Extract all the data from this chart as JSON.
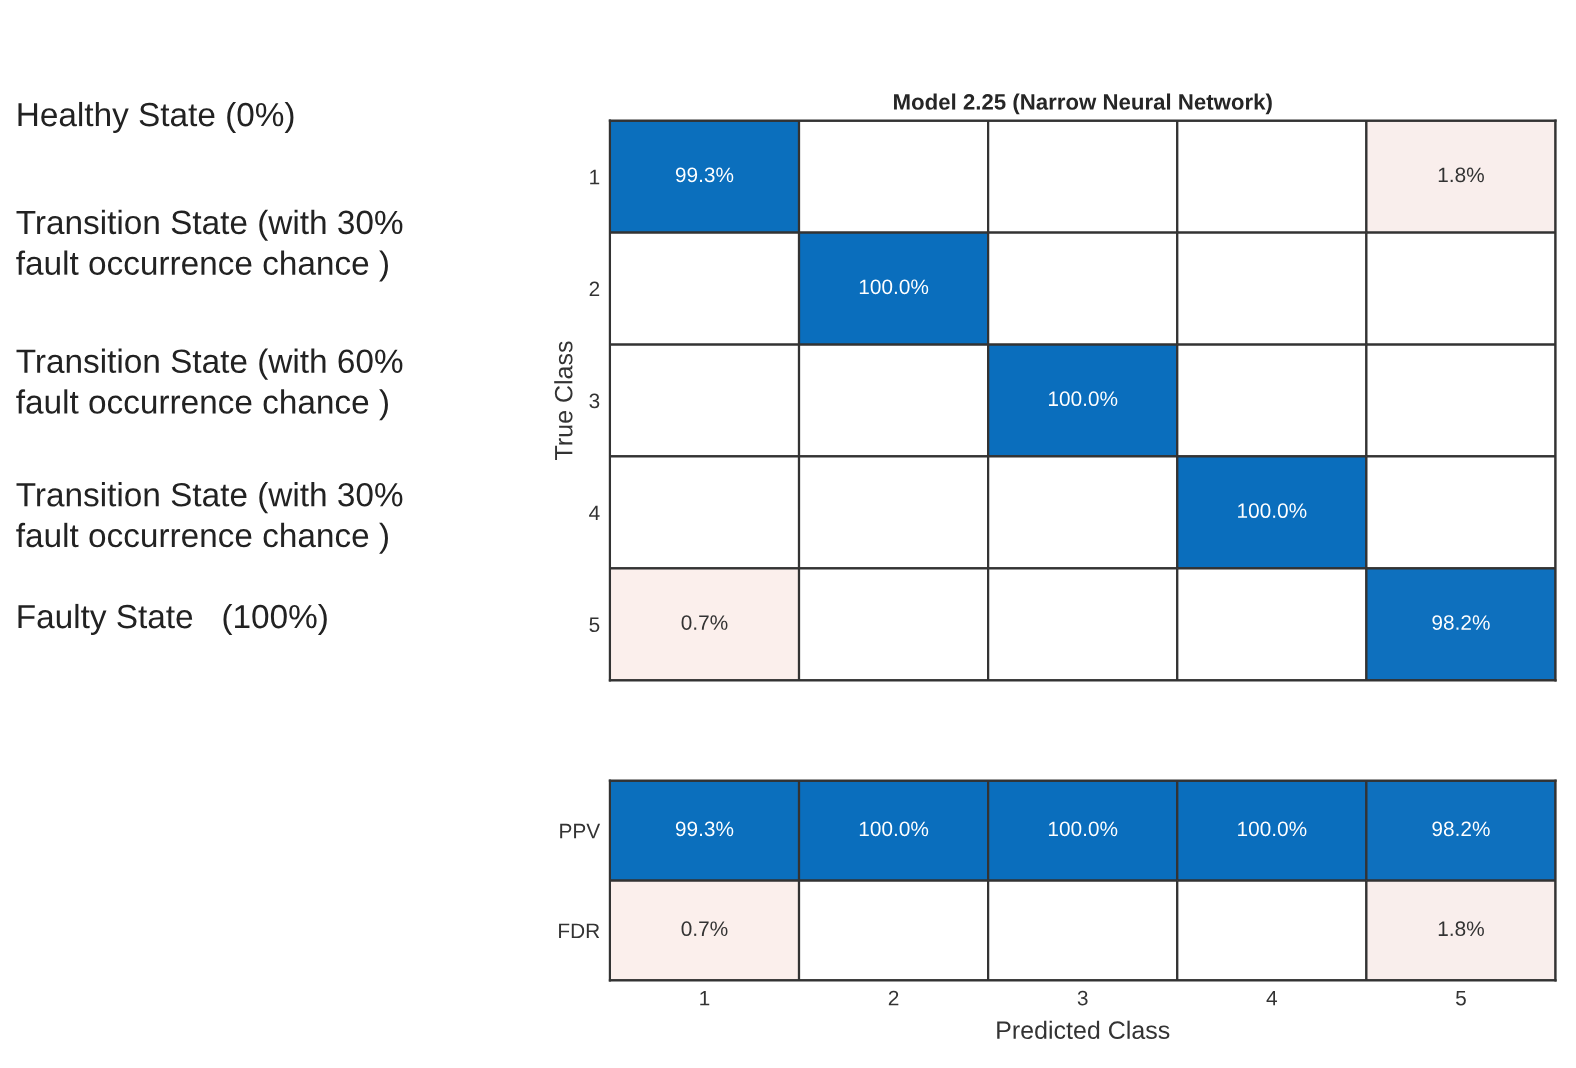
{
  "chart_data": [
    {
      "type": "heatmap",
      "title": "Model 2.25 (Narrow Neural Network)",
      "ylabel": "True Class",
      "categories": [
        "1",
        "2",
        "3",
        "4",
        "5"
      ],
      "y_categories": [
        "1",
        "2",
        "3",
        "4",
        "5"
      ],
      "cells": [
        [
          99.3,
          null,
          null,
          null,
          1.8
        ],
        [
          null,
          100.0,
          null,
          null,
          null
        ],
        [
          null,
          null,
          100.0,
          null,
          null
        ],
        [
          null,
          null,
          null,
          100.0,
          null
        ],
        [
          0.7,
          null,
          null,
          null,
          98.2
        ]
      ],
      "cell_labels": [
        [
          "99.3%",
          null,
          null,
          null,
          "1.8%"
        ],
        [
          null,
          "100.0%",
          null,
          null,
          null
        ],
        [
          null,
          null,
          "100.0%",
          null,
          null
        ],
        [
          null,
          null,
          null,
          "100.0%",
          null
        ],
        [
          "0.7%",
          null,
          null,
          null,
          "98.2%"
        ]
      ],
      "colors": [
        "#fbefec",
        "#0a6ebd"
      ],
      "tick_labels": "y",
      "annotations": [
        "Healthy State (0%)",
        "Transition State (with 30%\nfault occurrence chance )",
        "Transition State (with 60%\nfault occurrence chance )",
        "Transition State (with 30%\nfault occurrence chance )",
        "Faulty State   (100%)"
      ]
    },
    {
      "type": "heatmap",
      "xlabel": "Predicted Class",
      "categories": [
        "1",
        "2",
        "3",
        "4",
        "5"
      ],
      "y_categories": [
        "PPV",
        "FDR"
      ],
      "cells": [
        [
          99.3,
          100.0,
          100.0,
          100.0,
          98.2
        ],
        [
          0.7,
          null,
          null,
          null,
          1.8
        ]
      ],
      "cell_labels": [
        [
          "99.3%",
          "100.0%",
          "100.0%",
          "100.0%",
          "98.2%"
        ],
        [
          "0.7%",
          null,
          null,
          null,
          "1.8%"
        ]
      ],
      "colors": [
        "#fbefec",
        "#0a6ebd"
      ]
    }
  ]
}
